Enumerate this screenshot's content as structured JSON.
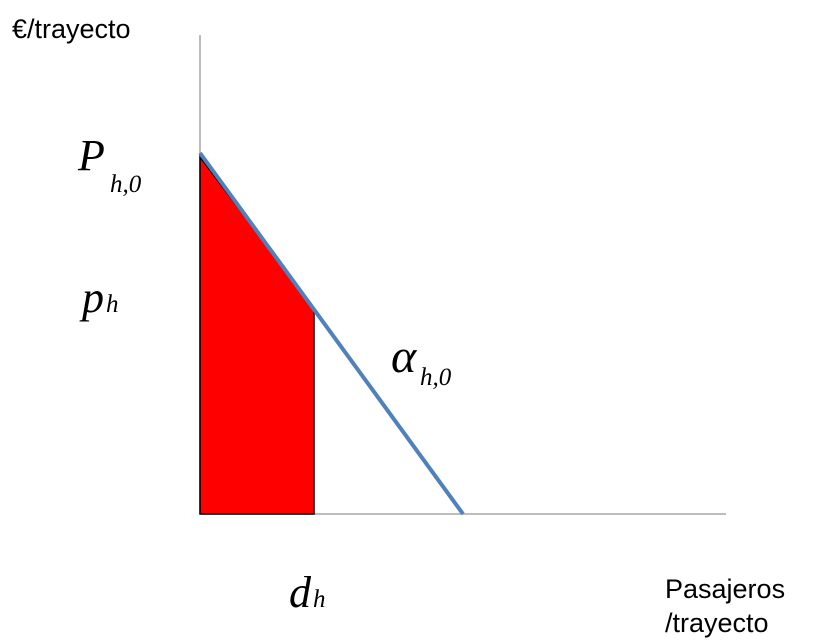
{
  "axes": {
    "y_label": "€/trayecto",
    "x_label_line1": "Pasajeros",
    "x_label_line2": "/trayecto"
  },
  "labels": {
    "max_price": {
      "main": "P",
      "sub": "h,0"
    },
    "price": {
      "main": "p",
      "sub": "h"
    },
    "slope": {
      "main": "α",
      "sub": "h,0"
    },
    "demand": {
      "main": "d",
      "sub": "h"
    }
  },
  "colors": {
    "axis": "#a6a6a6",
    "demand_line": "#4f81bd",
    "area_fill": "#ff0000",
    "area_stroke": "#000000",
    "text": "#000000"
  }
}
